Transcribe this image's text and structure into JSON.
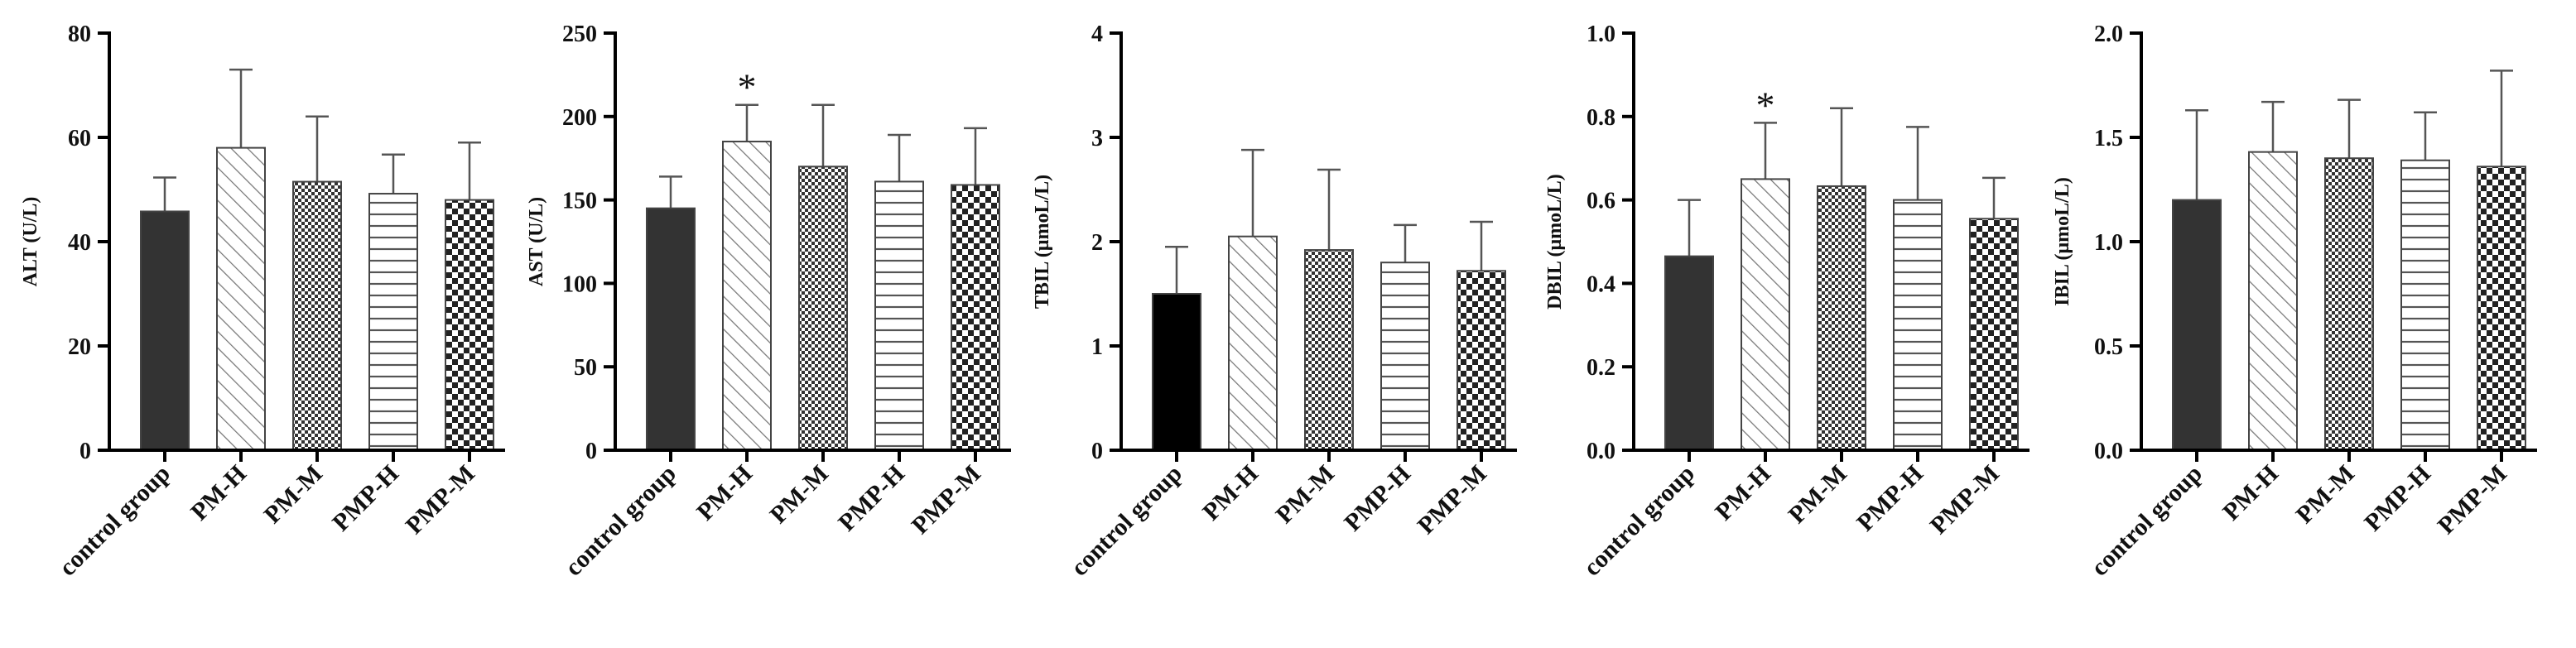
{
  "colors": {
    "control_fill": "#333333",
    "control_fill_tbil": "#000000",
    "pattern_stroke": "#555555",
    "axis": "#000000"
  },
  "pattern_names": [
    "solid",
    "diagonal-hatch",
    "fine-checker",
    "horizontal-lines",
    "coarse-checker"
  ],
  "chart_data": [
    {
      "type": "bar",
      "ylabel": "ALT (U/L)",
      "categories": [
        "control group",
        "PM-H",
        "PM-M",
        "PMP-H",
        "PMP-M"
      ],
      "values": [
        45.8,
        58.0,
        51.5,
        49.2,
        48.0
      ],
      "errors": [
        6.5,
        15.0,
        12.5,
        7.5,
        11.0
      ],
      "ylim": [
        0,
        80
      ],
      "yticks": [
        "0",
        "20",
        "40",
        "60",
        "80"
      ],
      "significance": [
        "",
        "",
        "",
        "",
        ""
      ]
    },
    {
      "type": "bar",
      "ylabel": "AST (U/L)",
      "categories": [
        "control group",
        "PM-H",
        "PM-M",
        "PMP-H",
        "PMP-M"
      ],
      "values": [
        145,
        185,
        170,
        161,
        159
      ],
      "errors": [
        19,
        22,
        37,
        28,
        34
      ],
      "ylim": [
        0,
        250
      ],
      "yticks": [
        "0",
        "50",
        "100",
        "150",
        "200",
        "250"
      ],
      "significance": [
        "",
        "*",
        "",
        "",
        ""
      ]
    },
    {
      "type": "bar",
      "ylabel": "TBIL (μmoL/L)",
      "categories": [
        "control group",
        "PM-H",
        "PM-M",
        "PMP-H",
        "PMP-M"
      ],
      "values": [
        1.5,
        2.05,
        1.92,
        1.8,
        1.72
      ],
      "errors": [
        0.45,
        0.83,
        0.77,
        0.36,
        0.47
      ],
      "ylim": [
        0,
        4
      ],
      "yticks": [
        "0",
        "1",
        "2",
        "3",
        "4"
      ],
      "significance": [
        "",
        "",
        "",
        "",
        ""
      ]
    },
    {
      "type": "bar",
      "ylabel": "DBIL (μmoL/L)",
      "categories": [
        "control group",
        "PM-H",
        "PM-M",
        "PMP-H",
        "PMP-M"
      ],
      "values": [
        0.465,
        0.65,
        0.633,
        0.6,
        0.555
      ],
      "errors": [
        0.135,
        0.135,
        0.187,
        0.175,
        0.098
      ],
      "ylim": [
        0,
        1.0
      ],
      "yticks": [
        "0.0",
        "0.2",
        "0.4",
        "0.6",
        "0.8",
        "1.0"
      ],
      "significance": [
        "",
        "*",
        "",
        "",
        ""
      ]
    },
    {
      "type": "bar",
      "ylabel": "IBIL (μmoL/L)",
      "categories": [
        "control group",
        "PM-H",
        "PM-M",
        "PMP-H",
        "PMP-M"
      ],
      "values": [
        1.2,
        1.43,
        1.4,
        1.39,
        1.36
      ],
      "errors": [
        0.43,
        0.24,
        0.28,
        0.23,
        0.46
      ],
      "ylim": [
        0,
        2.0
      ],
      "yticks": [
        "0.0",
        "0.5",
        "1.0",
        "1.5",
        "2.0"
      ],
      "significance": [
        "",
        "",
        "",
        "",
        ""
      ]
    }
  ]
}
